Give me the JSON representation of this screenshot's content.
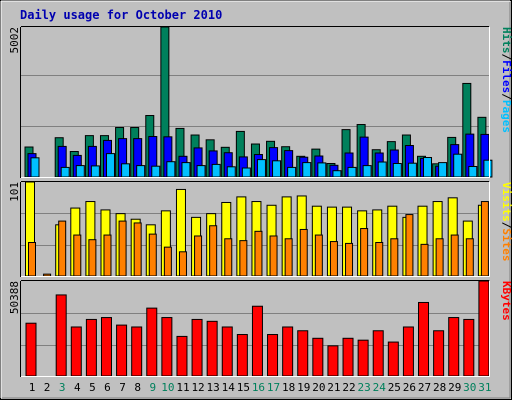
{
  "colors": {
    "frame_bg": "#C0C0C0",
    "plot_bg": "#C0C0C0",
    "grid": "#808080",
    "title": "#0000B0",
    "hits": "#00805C",
    "files": "#0000FF",
    "pages": "#00C0FF",
    "visits": "#FFFF00",
    "sites": "#FF8000",
    "kbytes": "#FF0000",
    "weekend_day": "#00805C",
    "weekday": "#000000"
  },
  "chart_data": [
    {
      "type": "bar",
      "title": "Daily usage for October 2010",
      "ylim": [
        0,
        5002
      ],
      "y_tick_label": "5002",
      "x": [
        1,
        2,
        3,
        4,
        5,
        6,
        7,
        8,
        9,
        10,
        11,
        12,
        13,
        14,
        15,
        16,
        17,
        18,
        19,
        20,
        21,
        22,
        23,
        24,
        25,
        26,
        27,
        28,
        29,
        30,
        31
      ],
      "x_labels": [
        "1",
        "2",
        "3",
        "4",
        "5",
        "6",
        "7",
        "8",
        "9",
        "10",
        "11",
        "12",
        "13",
        "14",
        "15",
        "16",
        "17",
        "18",
        "19",
        "20",
        "21",
        "22",
        "23",
        "24",
        "25",
        "26",
        "27",
        "28",
        "29",
        "30",
        "31"
      ],
      "weekend_days": [
        3,
        9,
        10,
        16,
        17,
        23,
        24,
        30,
        31
      ],
      "legend": [
        {
          "text": "Hits",
          "color_key": "hits"
        },
        {
          "text": "/",
          "color_key": "weekday"
        },
        {
          "text": "Files",
          "color_key": "files"
        },
        {
          "text": "/",
          "color_key": "weekday"
        },
        {
          "text": "Pages",
          "color_key": "pages"
        }
      ],
      "series": [
        {
          "name": "Hits",
          "color_key": "hits",
          "values": [
            1000,
            0,
            1310,
            850,
            1380,
            1380,
            1650,
            1650,
            2050,
            5002,
            1620,
            1400,
            1240,
            990,
            1520,
            1100,
            1190,
            1010,
            690,
            930,
            450,
            1580,
            1750,
            910,
            1180,
            1400,
            690,
            440,
            1320,
            3120,
            1990
          ]
        },
        {
          "name": "Files",
          "color_key": "files",
          "values": [
            780,
            0,
            1020,
            720,
            1020,
            1220,
            1280,
            1280,
            1350,
            1340,
            690,
            970,
            870,
            810,
            670,
            750,
            980,
            880,
            660,
            700,
            390,
            800,
            1330,
            800,
            900,
            1050,
            620,
            360,
            1080,
            1430,
            1420
          ]
        },
        {
          "name": "Pages",
          "color_key": "pages",
          "values": [
            640,
            0,
            320,
            380,
            370,
            780,
            440,
            380,
            360,
            510,
            480,
            380,
            420,
            340,
            300,
            580,
            540,
            320,
            480,
            470,
            210,
            320,
            380,
            500,
            450,
            460,
            650,
            480,
            760,
            350,
            560
          ]
        }
      ]
    },
    {
      "type": "bar",
      "ylim": [
        0,
        101
      ],
      "y_tick_label": "101",
      "legend": [
        {
          "text": "Visits",
          "color_key": "visits"
        },
        {
          "text": "/",
          "color_key": "weekday"
        },
        {
          "text": "Sites",
          "color_key": "sites"
        }
      ],
      "series": [
        {
          "name": "Visits",
          "color_key": "visits",
          "values": [
            101,
            0,
            55,
            73,
            80,
            71,
            67,
            61,
            55,
            70,
            93,
            63,
            67,
            79,
            85,
            80,
            76,
            85,
            86,
            75,
            74,
            74,
            70,
            71,
            75,
            63,
            75,
            80,
            84,
            59,
            76
          ]
        },
        {
          "name": "Sites",
          "color_key": "sites",
          "values": [
            36,
            2,
            59,
            44,
            39,
            44,
            59,
            57,
            45,
            31,
            26,
            43,
            54,
            40,
            38,
            48,
            43,
            40,
            50,
            44,
            37,
            35,
            51,
            36,
            40,
            66,
            34,
            40,
            44,
            40,
            80
          ]
        }
      ]
    },
    {
      "type": "bar",
      "ylim": [
        0,
        50388
      ],
      "y_tick_label": "50388",
      "legend": [
        {
          "text": "KBytes",
          "color_key": "kbytes"
        }
      ],
      "series": [
        {
          "name": "KBytes",
          "color_key": "kbytes",
          "values": [
            28000,
            0,
            43000,
            26000,
            30000,
            31000,
            27000,
            26000,
            36000,
            31000,
            21000,
            30000,
            29000,
            26000,
            22000,
            37000,
            22000,
            26000,
            24000,
            20000,
            16000,
            20000,
            19000,
            24000,
            18000,
            26000,
            39000,
            24000,
            31000,
            30000,
            50388
          ]
        }
      ]
    }
  ]
}
